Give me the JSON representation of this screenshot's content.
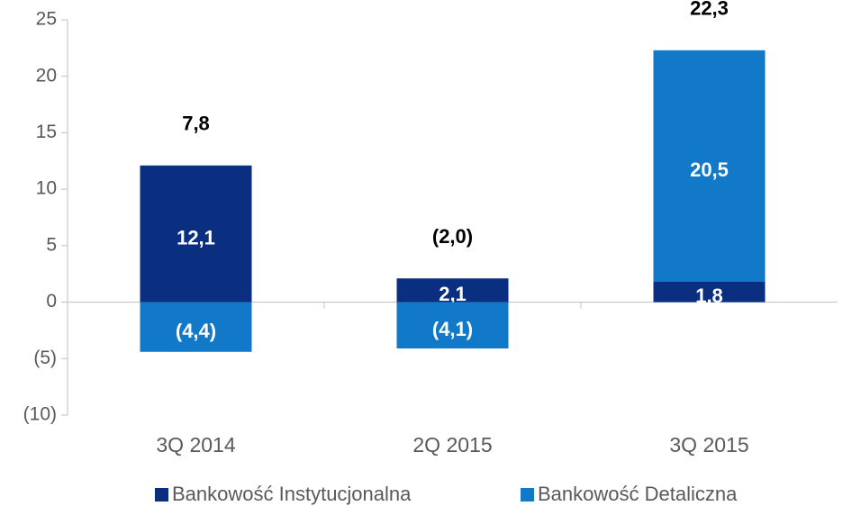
{
  "chart_data": {
    "type": "stacked_bar",
    "categories": [
      "3Q 2014",
      "2Q 2015",
      "3Q 2015"
    ],
    "series": [
      {
        "name": "Bankowość Instytucjonalna",
        "color": "#0b2f80",
        "values": [
          12.1,
          2.1,
          1.8
        ],
        "value_labels": [
          "12,1",
          "2,1",
          "1,8"
        ]
      },
      {
        "name": "Bankowość Detaliczna",
        "color": "#1278c8",
        "values": [
          -4.4,
          -4.1,
          20.5
        ],
        "value_labels": [
          "(4,4)",
          "(4,1)",
          "20,5"
        ]
      }
    ],
    "totals": [
      7.8,
      -2.0,
      22.3
    ],
    "total_labels": [
      "7,8",
      "(2,0)",
      "22,3"
    ],
    "ylim": [
      -10,
      25
    ],
    "yticks": [
      {
        "value": -10,
        "label": "(10)"
      },
      {
        "value": -5,
        "label": "(5)"
      },
      0,
      5,
      10,
      15,
      20,
      25
    ],
    "legend": "bottom"
  }
}
